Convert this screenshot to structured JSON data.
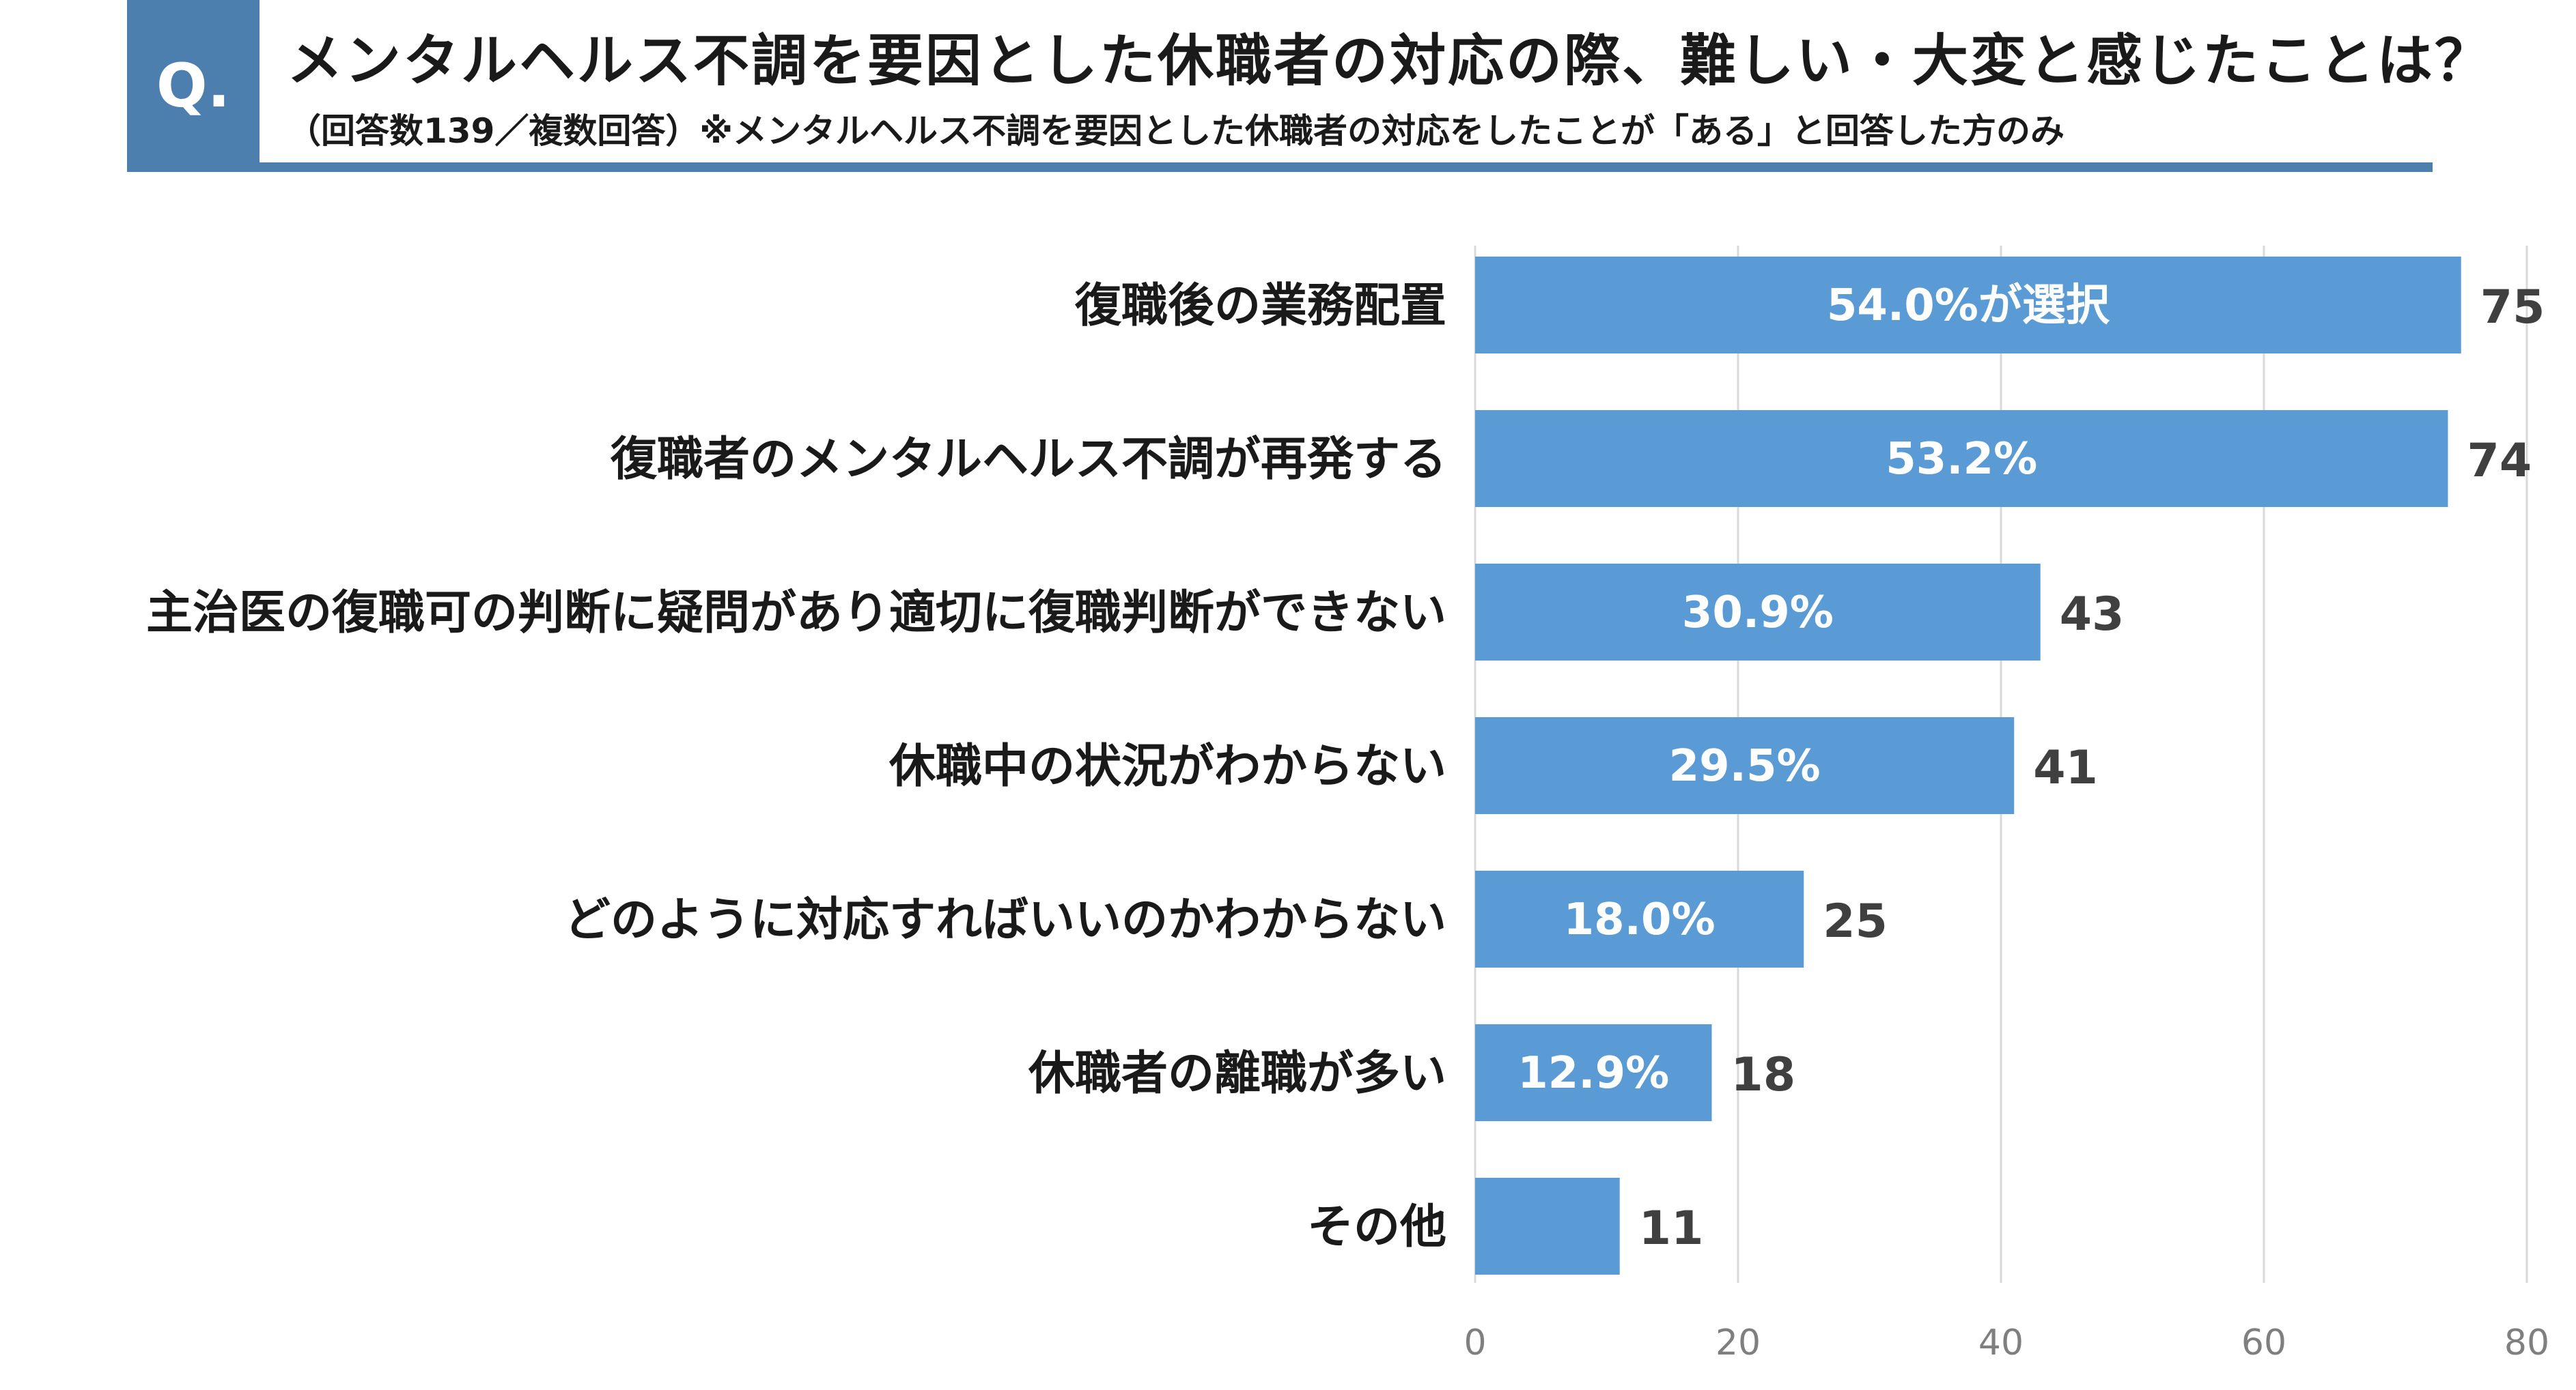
{
  "header": {
    "badge": "Q.",
    "title": "メンタルヘルス不調を要因とした休職者の対応の際、難しい・大変と感じたことは？",
    "subtitle": "（回答数139／複数回答）※メンタルヘルス不調を要因とした休職者の対応をしたことが「ある」と回答した方のみ"
  },
  "colors": {
    "bar": "#5b9bd5",
    "header": "#4d7fae",
    "grid": "#d9d9d9",
    "axis_text": "#7f7f7f",
    "value_text": "#404040",
    "category_text": "#1a1a1a"
  },
  "chart_data": {
    "type": "bar",
    "orientation": "horizontal",
    "categories": [
      "復職後の業務配置",
      "復職者のメンタルヘルス不調が再発する",
      "主治医の復職可の判断に疑問があり適切に復職判断ができない",
      "休職中の状況がわからない",
      "どのように対応すればいいのかわからない",
      "休職者の離職が多い",
      "その他"
    ],
    "values": [
      75,
      74,
      43,
      41,
      25,
      18,
      11
    ],
    "bar_labels": [
      "54.0%が選択",
      "53.2%",
      "30.9%",
      "29.5%",
      "18.0%",
      "12.9%",
      ""
    ],
    "xlim": [
      0,
      80
    ],
    "xticks": [
      0,
      20,
      40,
      60,
      80
    ],
    "grid": true
  }
}
